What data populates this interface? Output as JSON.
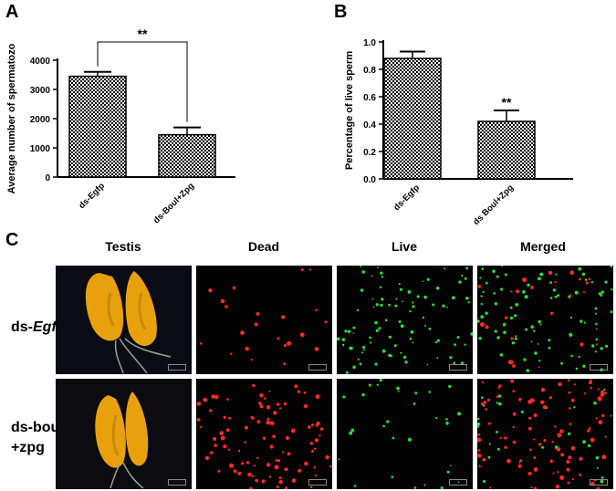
{
  "panels": {
    "a": "A",
    "b": "B",
    "c": "C"
  },
  "chart_data": [
    {
      "type": "bar",
      "categories": [
        "ds-Egfp",
        "ds-Boul+Zpg"
      ],
      "values": [
        3450,
        1450
      ],
      "errors": [
        150,
        250
      ],
      "ylabel": "Average number of spermatozo",
      "ylim": [
        0,
        4000
      ],
      "yticks": [
        "0",
        "1000",
        "2000",
        "3000",
        "4000"
      ],
      "significance": "**",
      "bracket": true
    },
    {
      "type": "bar",
      "categories": [
        "ds-Egfp",
        "ds Boul+Zpg"
      ],
      "values": [
        0.88,
        0.42
      ],
      "errors": [
        0.05,
        0.08
      ],
      "ylabel": "Percentage of live sperm",
      "ylim": [
        0,
        1.0
      ],
      "yticks": [
        "0.0",
        "0.2",
        "0.4",
        "0.6",
        "0.8",
        "1.0"
      ],
      "significance": "**",
      "bracket": false
    }
  ],
  "panel_c": {
    "columns": [
      "Testis",
      "Dead",
      "Live",
      "Merged"
    ],
    "rows": [
      {
        "prefix": "ds-",
        "italic": "Egfp",
        "line2": ""
      },
      {
        "prefix": "ds-boul",
        "italic": "",
        "line2": "+zpg"
      }
    ],
    "colors": {
      "dead": "#ff2a2a",
      "live": "#2ddc3c",
      "testis": "#e8a10c"
    }
  }
}
